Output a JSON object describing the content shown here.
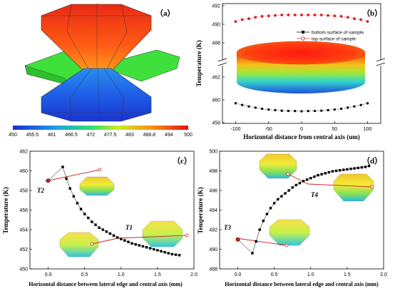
{
  "panel_a": {
    "label": "（a）",
    "colorbar_ticks": [
      "450",
      "455.5",
      "461",
      "466.5",
      "472",
      "477.5",
      "483",
      "488.8",
      "494",
      "500"
    ]
  },
  "chart_data": [
    {
      "id": "b",
      "type": "scatter",
      "panel_label": "（b）",
      "xlabel": "Horizontal distance from central axis (um)",
      "ylabel": "Temperature (K)",
      "xlim": [
        -120,
        120
      ],
      "x_ticks": [
        "-100",
        "-50",
        "0",
        "50",
        "100"
      ],
      "y_ticks_upper": [
        "492",
        "490",
        "488"
      ],
      "y_ticks_lower": [
        "462",
        "460",
        "458"
      ],
      "axis_break": "between 488 and 462",
      "legend": {
        "position": "top-right",
        "entries": [
          "bottom surface of sample",
          "top surface of sample"
        ]
      },
      "series": [
        {
          "name": "top surface of sample",
          "color": "#d42020",
          "marker": "circle",
          "x": [
            -100,
            -90,
            -80,
            -70,
            -60,
            -50,
            -40,
            -30,
            -20,
            -10,
            0,
            10,
            20,
            30,
            40,
            50,
            60,
            70,
            80,
            90,
            100
          ],
          "y": [
            490.3,
            490.5,
            490.6,
            490.75,
            490.85,
            490.9,
            490.95,
            491,
            491,
            491,
            491,
            491,
            491,
            491,
            490.95,
            490.9,
            490.85,
            490.75,
            490.6,
            490.5,
            490.3
          ]
        },
        {
          "name": "bottom surface of sample",
          "color": "#000000",
          "marker": "square",
          "x": [
            -100,
            -90,
            -80,
            -70,
            -60,
            -50,
            -40,
            -30,
            -20,
            -10,
            0,
            10,
            20,
            30,
            40,
            50,
            60,
            70,
            80,
            90,
            100
          ],
          "y": [
            459.7,
            459.55,
            459.42,
            459.32,
            459.22,
            459.15,
            459.1,
            459.05,
            459.03,
            459.02,
            459.0,
            459.02,
            459.03,
            459.05,
            459.1,
            459.15,
            459.22,
            459.32,
            459.42,
            459.55,
            459.7
          ]
        }
      ]
    },
    {
      "id": "c",
      "type": "scatter",
      "panel_label": "（c）",
      "xlabel": "Horizontal distance between lateral edge and central axis (mm)",
      "ylabel": "Temperature (K)",
      "xlim": [
        -0.25,
        2.0
      ],
      "ylim": [
        450,
        462
      ],
      "x_ticks": [
        0.0,
        0.5,
        1.0,
        1.5,
        2.0
      ],
      "y_ticks": [
        450,
        452,
        454,
        456,
        458,
        460,
        462
      ],
      "annotations": [
        "T2",
        "T1"
      ],
      "series": [
        {
          "marker": "square",
          "color": "#000000",
          "x": [
            0.0,
            0.2,
            0.25,
            0.3,
            0.35,
            0.4,
            0.45,
            0.5,
            0.55,
            0.6,
            0.65,
            0.7,
            0.75,
            0.8,
            0.85,
            0.9,
            0.95,
            1.0,
            1.05,
            1.1,
            1.15,
            1.2,
            1.25,
            1.3,
            1.35,
            1.4,
            1.45,
            1.5,
            1.55,
            1.6,
            1.65,
            1.7,
            1.75,
            1.8
          ],
          "y": [
            459.0,
            460.4,
            459.2,
            458.2,
            457.4,
            456.7,
            456.1,
            455.6,
            455.2,
            454.8,
            454.5,
            454.2,
            454.0,
            453.8,
            453.6,
            453.4,
            453.2,
            453.05,
            452.9,
            452.75,
            452.6,
            452.5,
            452.4,
            452.3,
            452.2,
            452.1,
            452.0,
            451.9,
            451.8,
            451.7,
            451.6,
            451.5,
            451.45,
            451.4
          ]
        }
      ]
    },
    {
      "id": "d",
      "type": "scatter",
      "panel_label": "（d）",
      "xlabel": "Horizontal distance between lateral edge and central axis (mm)",
      "ylabel": "Temperature (K)",
      "xlim": [
        -0.25,
        2.0
      ],
      "ylim": [
        488,
        500
      ],
      "x_ticks": [
        0.0,
        0.5,
        1.0,
        1.5,
        2.0
      ],
      "y_ticks": [
        488,
        490,
        492,
        494,
        496,
        498,
        500
      ],
      "annotations": [
        "T3",
        "T4"
      ],
      "series": [
        {
          "marker": "square",
          "color": "#000000",
          "x": [
            0.0,
            0.2,
            0.25,
            0.3,
            0.35,
            0.4,
            0.45,
            0.5,
            0.55,
            0.6,
            0.65,
            0.7,
            0.75,
            0.8,
            0.85,
            0.9,
            0.95,
            1.0,
            1.05,
            1.1,
            1.15,
            1.2,
            1.25,
            1.3,
            1.35,
            1.4,
            1.45,
            1.5,
            1.55,
            1.6,
            1.65,
            1.7,
            1.75,
            1.8
          ],
          "y": [
            491.0,
            489.6,
            490.8,
            492.0,
            492.9,
            493.6,
            494.2,
            494.7,
            495.1,
            495.4,
            495.7,
            496.0,
            496.3,
            496.55,
            496.75,
            496.95,
            497.1,
            497.25,
            497.4,
            497.55,
            497.65,
            497.75,
            497.85,
            497.95,
            498.0,
            498.05,
            498.1,
            498.15,
            498.2,
            498.25,
            498.3,
            498.35,
            498.4,
            498.5
          ]
        }
      ]
    }
  ]
}
